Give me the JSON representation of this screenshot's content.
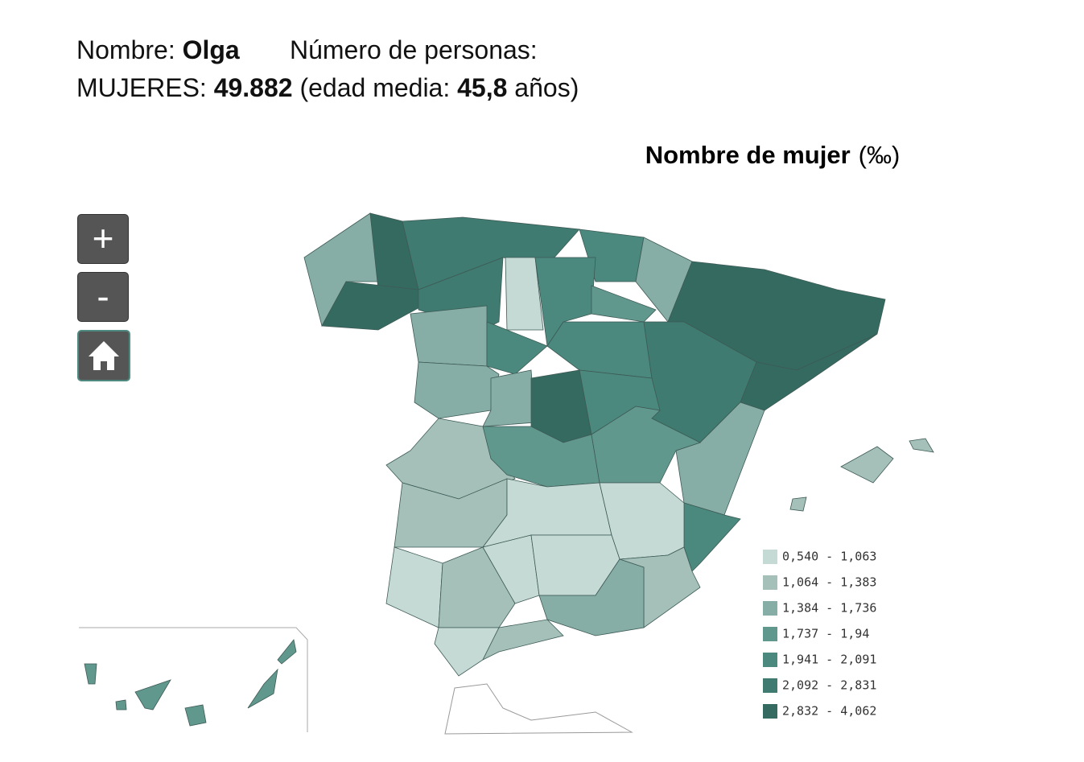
{
  "header": {
    "line1": {
      "name_label": "Nombre:",
      "name": "Olga",
      "count_label": "Número de personas:"
    },
    "line2": {
      "group": "MUJERES:",
      "count": "49.882",
      "age_label": "(edad media:",
      "age": "45,8",
      "age_unit": "años)"
    }
  },
  "map": {
    "title": "Nombre de mujer",
    "unit": "(‰)",
    "controls": {
      "zoom_in": "+",
      "zoom_out": "-"
    },
    "legend": [
      {
        "label": "0,540 - 1,063",
        "color": "#c6dad5"
      },
      {
        "label": "1,064 - 1,383",
        "color": "#a4c0b9"
      },
      {
        "label": "1,384 - 1,736",
        "color": "#86aea6"
      },
      {
        "label": "1,737 - 1,94",
        "color": "#61988d"
      },
      {
        "label": "1,941 - 2,091",
        "color": "#4b897e"
      },
      {
        "label": "2,092 - 2,831",
        "color": "#3f7b70"
      },
      {
        "label": "2,832 - 4,062",
        "color": "#356a61"
      }
    ]
  }
}
